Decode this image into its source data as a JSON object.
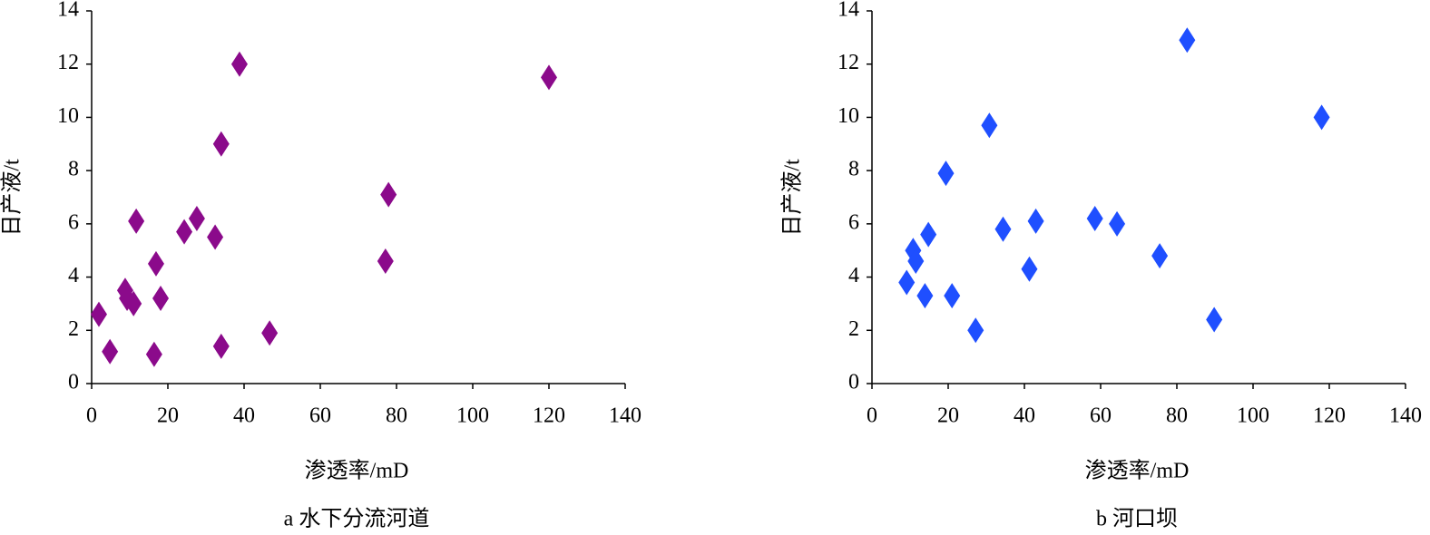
{
  "chart_data": [
    {
      "type": "scatter",
      "title": "a 水下分流河道",
      "xlabel": "渗透率/mD",
      "ylabel": "日产液/t",
      "color": "#8b0a8b",
      "x": [
        1.9,
        4.8,
        8.8,
        9.3,
        11,
        11.7,
        16.4,
        16.9,
        18.1,
        24.3,
        27.6,
        32.4,
        34,
        34,
        38.8,
        46.7,
        77.1,
        77.9,
        120
      ],
      "values": [
        2.6,
        1.2,
        3.5,
        3.2,
        3.0,
        6.1,
        1.1,
        4.5,
        3.2,
        5.7,
        6.2,
        5.5,
        9.0,
        1.4,
        12.0,
        1.9,
        4.6,
        7.1,
        11.5
      ],
      "xlim": [
        0,
        140
      ],
      "ylim": [
        0,
        14
      ],
      "xticks": [
        0,
        20,
        40,
        60,
        80,
        100,
        120,
        140
      ],
      "yticks": [
        0,
        2,
        4,
        6,
        8,
        10,
        12,
        14
      ]
    },
    {
      "type": "scatter",
      "title": "b 河口坝",
      "xlabel": "渗透率/mD",
      "ylabel": "日产液/t",
      "color": "#1f4fff",
      "x": [
        9.1,
        10.8,
        11.5,
        13.9,
        14.8,
        19.4,
        21.0,
        27.2,
        30.8,
        34.4,
        41.3,
        43.0,
        58.5,
        64.3,
        75.5,
        82.7,
        89.8,
        118
      ],
      "values": [
        3.8,
        5.0,
        4.6,
        3.3,
        5.6,
        7.9,
        3.3,
        2.0,
        9.7,
        5.8,
        4.3,
        6.1,
        6.2,
        6.0,
        4.8,
        12.9,
        2.4,
        10.0
      ],
      "xlim": [
        0,
        140
      ],
      "ylim": [
        0,
        14
      ],
      "xticks": [
        0,
        20,
        40,
        60,
        80,
        100,
        120,
        140
      ],
      "yticks": [
        0,
        2,
        4,
        6,
        8,
        10,
        12,
        14
      ]
    }
  ]
}
